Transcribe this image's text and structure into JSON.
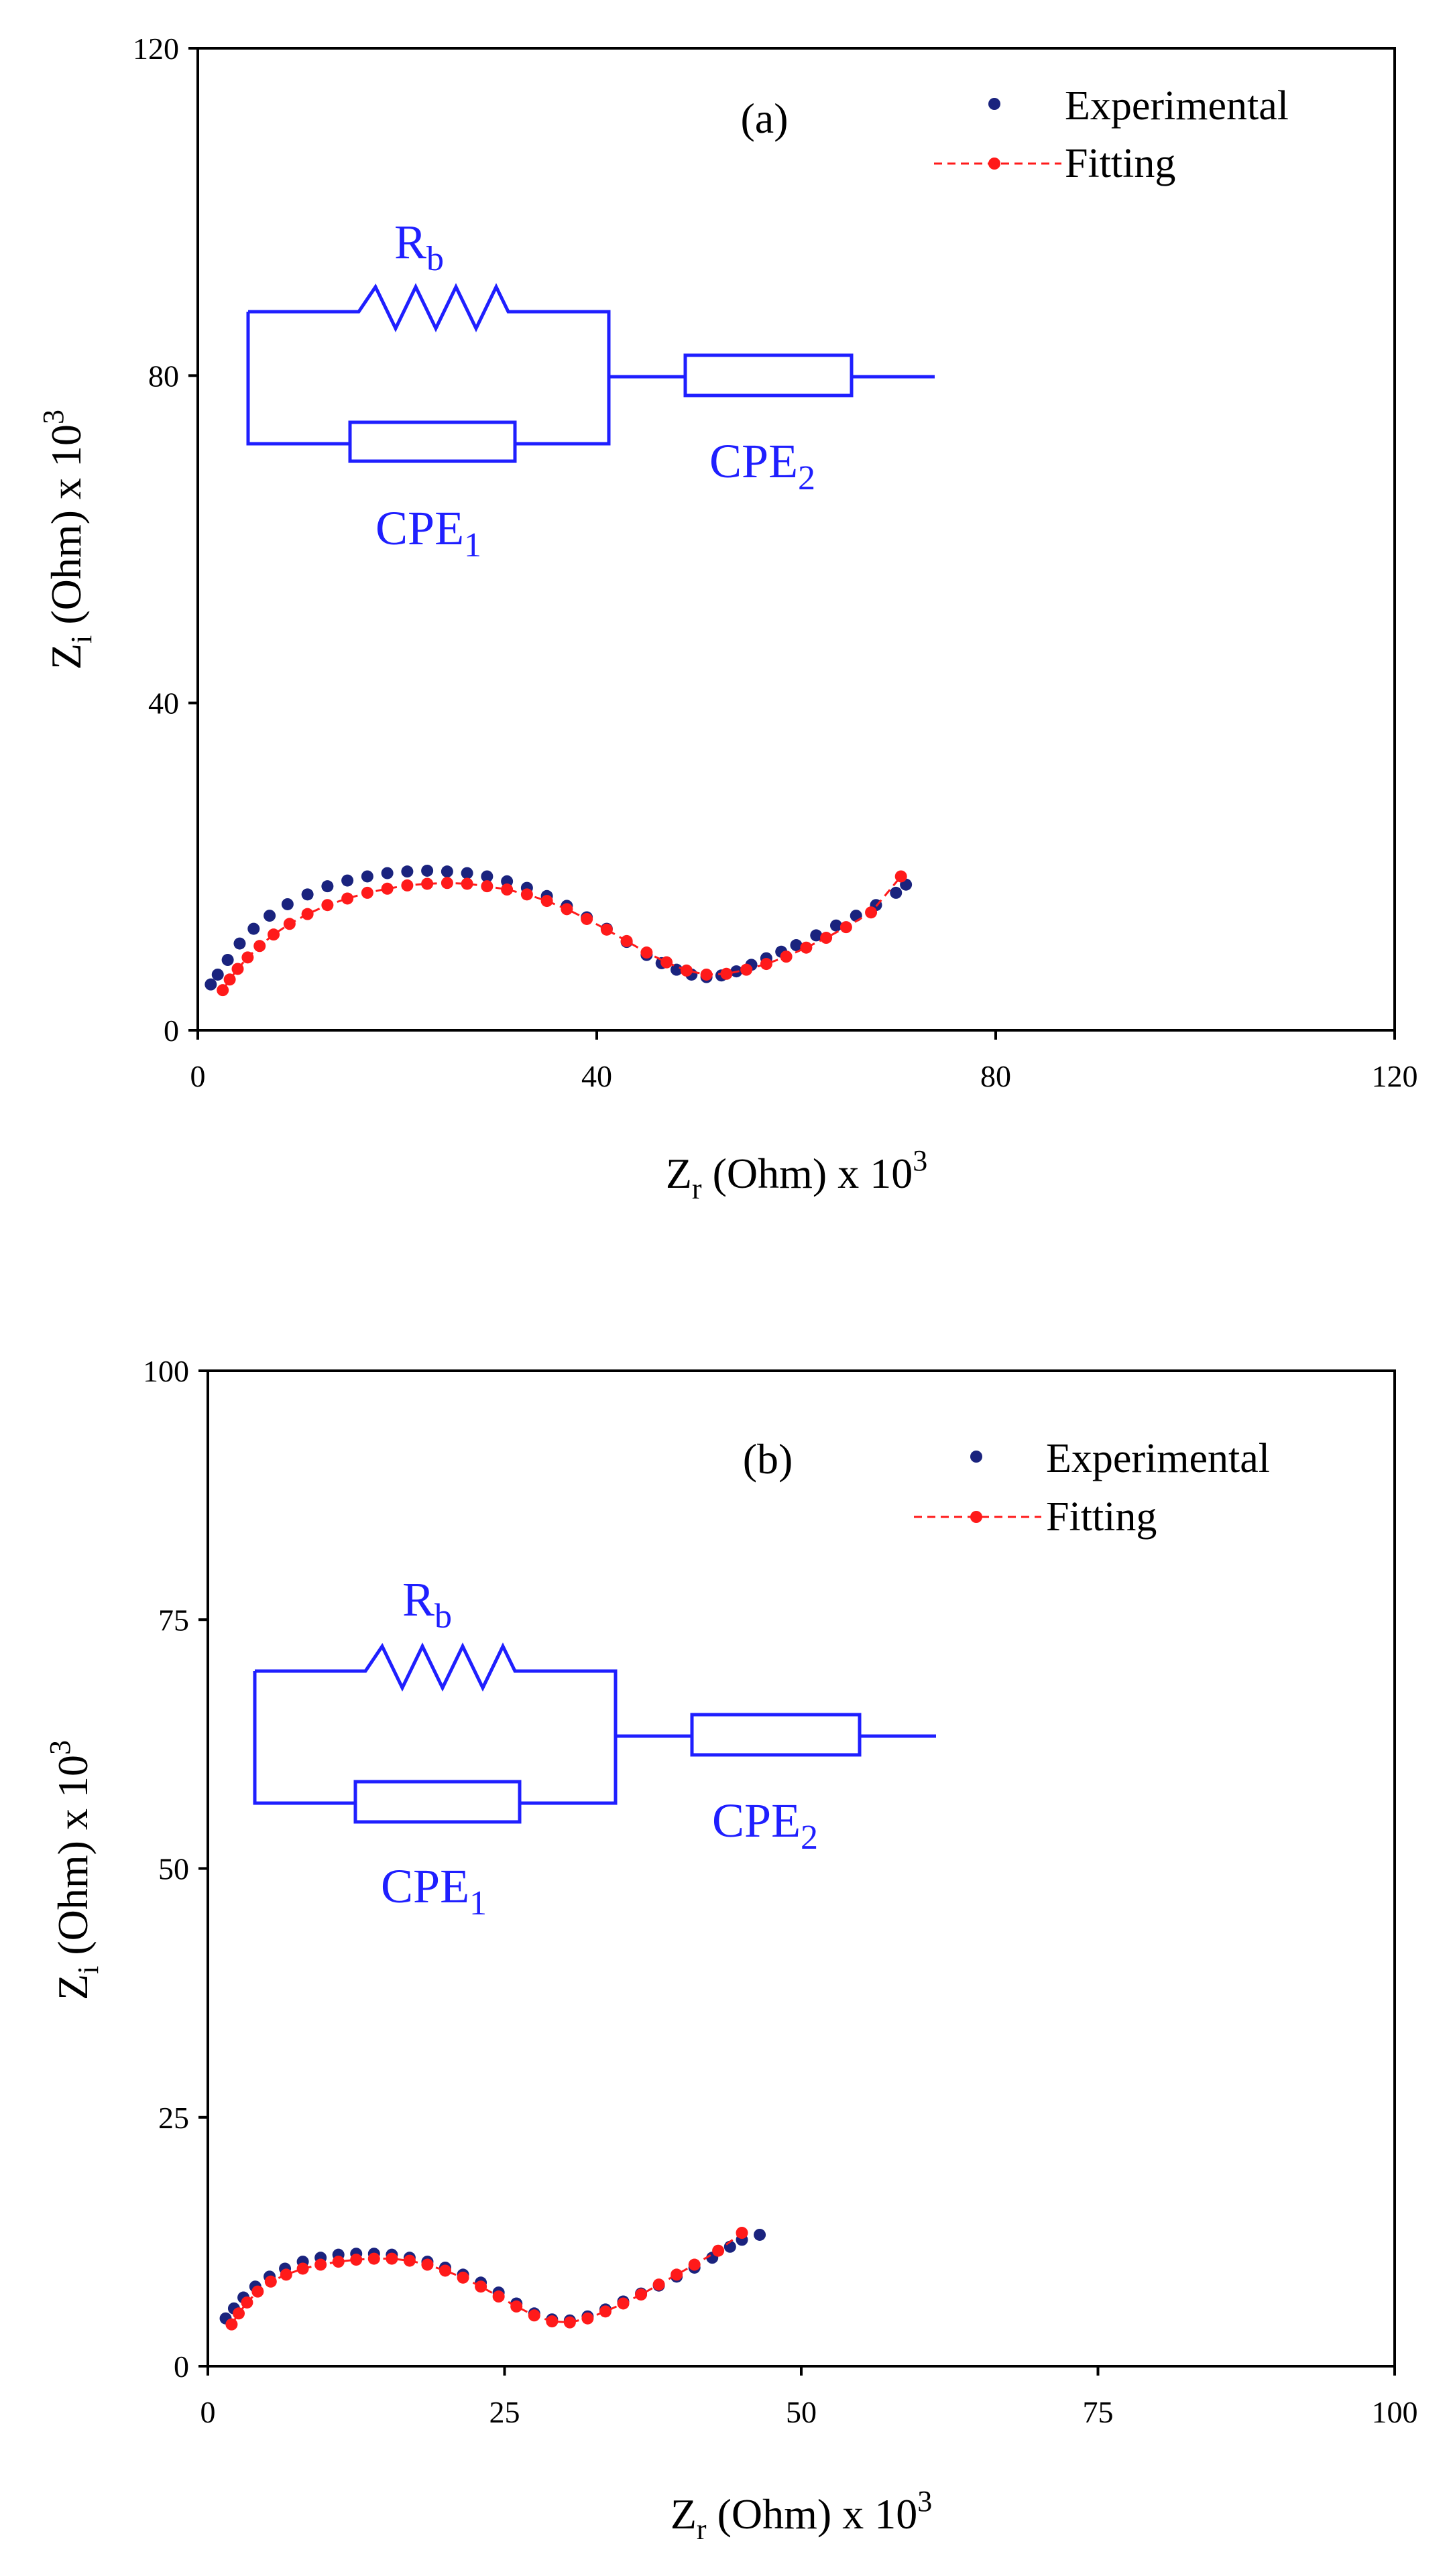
{
  "colors": {
    "experimental": "#1a237e",
    "fitting": "#ff1a1a",
    "circuit": "#1f1fff",
    "axis": "#000000"
  },
  "chart_data": [
    {
      "type": "scatter",
      "panel_label": "(a)",
      "xlabel": {
        "main": "Z",
        "sub": "r",
        "unit": " (Ohm) x 10",
        "sup": "3"
      },
      "ylabel": {
        "main": "Z",
        "sub": "i",
        "unit": " (Ohm) x 10",
        "sup": "3"
      },
      "xlim": [
        0,
        120
      ],
      "ylim": [
        0,
        120
      ],
      "xticks": [
        "0",
        "40",
        "80",
        "120"
      ],
      "yticks": [
        "0",
        "40",
        "80",
        "120"
      ],
      "legend": {
        "experimental": "Experimental",
        "fitting": "Fitting",
        "position": "top-right"
      },
      "circuit": {
        "r_main": "R",
        "r_sub": "b",
        "cpe1_main": "CPE",
        "cpe1_sub": "1",
        "cpe2_main": "CPE",
        "cpe2_sub": "2"
      },
      "series": [
        {
          "name": "Experimental",
          "x": [
            1.3,
            2.0,
            3.0,
            4.2,
            5.6,
            7.2,
            9.0,
            11.0,
            13.0,
            15.0,
            17.0,
            19.0,
            21.0,
            23.0,
            25.0,
            27.0,
            29.0,
            31.0,
            33.0,
            35.0,
            37.0,
            39.0,
            41.0,
            43.0,
            45.0,
            46.5,
            48.0,
            49.5,
            51.0,
            52.5,
            54.0,
            55.5,
            57.0,
            58.5,
            60.0,
            62.0,
            64.0,
            66.0,
            68.0,
            70.0,
            71.0
          ],
          "y": [
            5.6,
            6.8,
            8.6,
            10.6,
            12.4,
            14.0,
            15.4,
            16.6,
            17.6,
            18.3,
            18.8,
            19.2,
            19.4,
            19.5,
            19.4,
            19.2,
            18.8,
            18.2,
            17.4,
            16.4,
            15.2,
            13.8,
            12.4,
            10.8,
            9.2,
            8.2,
            7.4,
            6.8,
            6.5,
            6.7,
            7.2,
            8.0,
            8.8,
            9.6,
            10.4,
            11.6,
            12.8,
            14.0,
            15.3,
            16.8,
            17.8
          ]
        },
        {
          "name": "Fitting",
          "x": [
            2.5,
            3.2,
            4.0,
            5.0,
            6.2,
            7.6,
            9.2,
            11.0,
            13.0,
            15.0,
            17.0,
            19.0,
            21.0,
            23.0,
            25.0,
            27.0,
            29.0,
            31.0,
            33.0,
            35.0,
            37.0,
            39.0,
            41.0,
            43.0,
            45.0,
            47.0,
            49.0,
            51.0,
            53.0,
            55.0,
            57.0,
            59.0,
            61.0,
            63.0,
            65.0,
            67.5,
            70.5
          ],
          "y": [
            4.9,
            6.2,
            7.5,
            8.9,
            10.3,
            11.7,
            13.0,
            14.2,
            15.3,
            16.1,
            16.8,
            17.3,
            17.7,
            17.9,
            18.0,
            17.9,
            17.6,
            17.2,
            16.6,
            15.8,
            14.8,
            13.6,
            12.3,
            10.9,
            9.5,
            8.3,
            7.3,
            6.8,
            6.9,
            7.4,
            8.1,
            9.0,
            10.1,
            11.3,
            12.6,
            14.4,
            18.8
          ]
        }
      ]
    },
    {
      "type": "scatter",
      "panel_label": "(b)",
      "xlabel": {
        "main": "Z",
        "sub": "r",
        "unit": " (Ohm) x 10",
        "sup": "3"
      },
      "ylabel": {
        "main": "Z",
        "sub": "i",
        "unit": " (Ohm) x 10",
        "sup": "3"
      },
      "xlim": [
        0,
        100
      ],
      "ylim": [
        0,
        100
      ],
      "xticks": [
        "0",
        "25",
        "50",
        "75",
        "100"
      ],
      "yticks": [
        "0",
        "25",
        "50",
        "75",
        "100"
      ],
      "legend": {
        "experimental": "Experimental",
        "fitting": "Fitting",
        "position": "top-right"
      },
      "circuit": {
        "r_main": "R",
        "r_sub": "b",
        "cpe1_main": "CPE",
        "cpe1_sub": "1",
        "cpe2_main": "CPE",
        "cpe2_sub": "2"
      },
      "series": [
        {
          "name": "Experimental",
          "x": [
            1.5,
            2.2,
            3.0,
            4.0,
            5.2,
            6.5,
            8.0,
            9.5,
            11.0,
            12.5,
            14.0,
            15.5,
            17.0,
            18.5,
            20.0,
            21.5,
            23.0,
            24.5,
            26.0,
            27.5,
            29.0,
            30.5,
            32.0,
            33.5,
            35.0,
            36.5,
            38.0,
            39.5,
            41.0,
            42.5,
            44.0,
            45.0,
            46.5
          ],
          "y": [
            4.8,
            5.8,
            6.9,
            8.0,
            9.0,
            9.8,
            10.5,
            10.9,
            11.2,
            11.3,
            11.3,
            11.2,
            10.9,
            10.5,
            9.9,
            9.2,
            8.4,
            7.4,
            6.3,
            5.3,
            4.7,
            4.6,
            5.0,
            5.7,
            6.5,
            7.3,
            8.1,
            9.0,
            9.9,
            10.9,
            12.0,
            12.7,
            13.2
          ]
        },
        {
          "name": "Fitting",
          "x": [
            2.0,
            2.6,
            3.3,
            4.2,
            5.3,
            6.6,
            8.0,
            9.5,
            11.0,
            12.5,
            14.0,
            15.5,
            17.0,
            18.5,
            20.0,
            21.5,
            23.0,
            24.5,
            26.0,
            27.5,
            29.0,
            30.5,
            32.0,
            33.5,
            35.0,
            36.5,
            38.0,
            39.5,
            41.0,
            43.0,
            45.0
          ],
          "y": [
            4.2,
            5.3,
            6.4,
            7.5,
            8.5,
            9.2,
            9.8,
            10.2,
            10.5,
            10.7,
            10.8,
            10.8,
            10.6,
            10.2,
            9.6,
            8.9,
            8.0,
            7.0,
            6.0,
            5.1,
            4.5,
            4.4,
            4.8,
            5.5,
            6.3,
            7.2,
            8.2,
            9.2,
            10.2,
            11.6,
            13.4
          ]
        }
      ]
    }
  ]
}
